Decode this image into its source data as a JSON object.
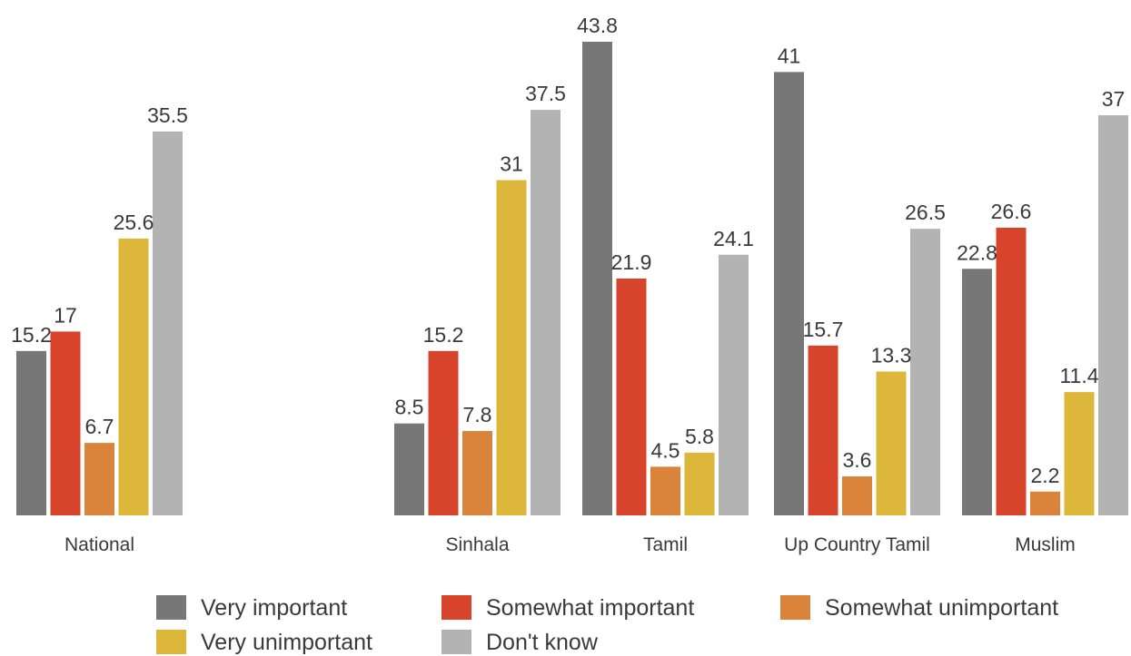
{
  "chart_data": {
    "type": "bar",
    "title": "",
    "xlabel": "",
    "ylabel": "",
    "ylim": [
      0,
      45
    ],
    "grid": false,
    "legend_position": "bottom",
    "categories": [
      "National",
      "Sinhala",
      "Tamil",
      "Up Country Tamil",
      "Muslim"
    ],
    "series": [
      {
        "name": "Very important",
        "color": "#777777",
        "values": [
          15.2,
          8.5,
          43.8,
          41,
          22.8
        ]
      },
      {
        "name": "Somewhat important",
        "color": "#d8432c",
        "values": [
          17,
          15.2,
          21.9,
          15.7,
          26.6
        ]
      },
      {
        "name": "Somewhat unimportant",
        "color": "#d9843a",
        "values": [
          6.7,
          7.8,
          4.5,
          3.6,
          2.2
        ]
      },
      {
        "name": "Very unimportant",
        "color": "#dcb73a",
        "values": [
          25.6,
          31,
          5.8,
          13.3,
          11.4
        ]
      },
      {
        "name": "Don't know",
        "color": "#b3b3b3",
        "values": [
          35.5,
          37.5,
          24.1,
          26.5,
          37
        ]
      }
    ],
    "value_labels": [
      [
        "15.2",
        "8.5",
        "43.8",
        "41",
        "22.8"
      ],
      [
        "17",
        "15.2",
        "21.9",
        "15.7",
        "26.6"
      ],
      [
        "6.7",
        "7.8",
        "4.5",
        "3.6",
        "2.2"
      ],
      [
        "25.6",
        "31",
        "5.8",
        "13.3",
        "11.4"
      ],
      [
        "35.5",
        "37.5",
        "24.1",
        "26.5",
        "37"
      ]
    ]
  }
}
